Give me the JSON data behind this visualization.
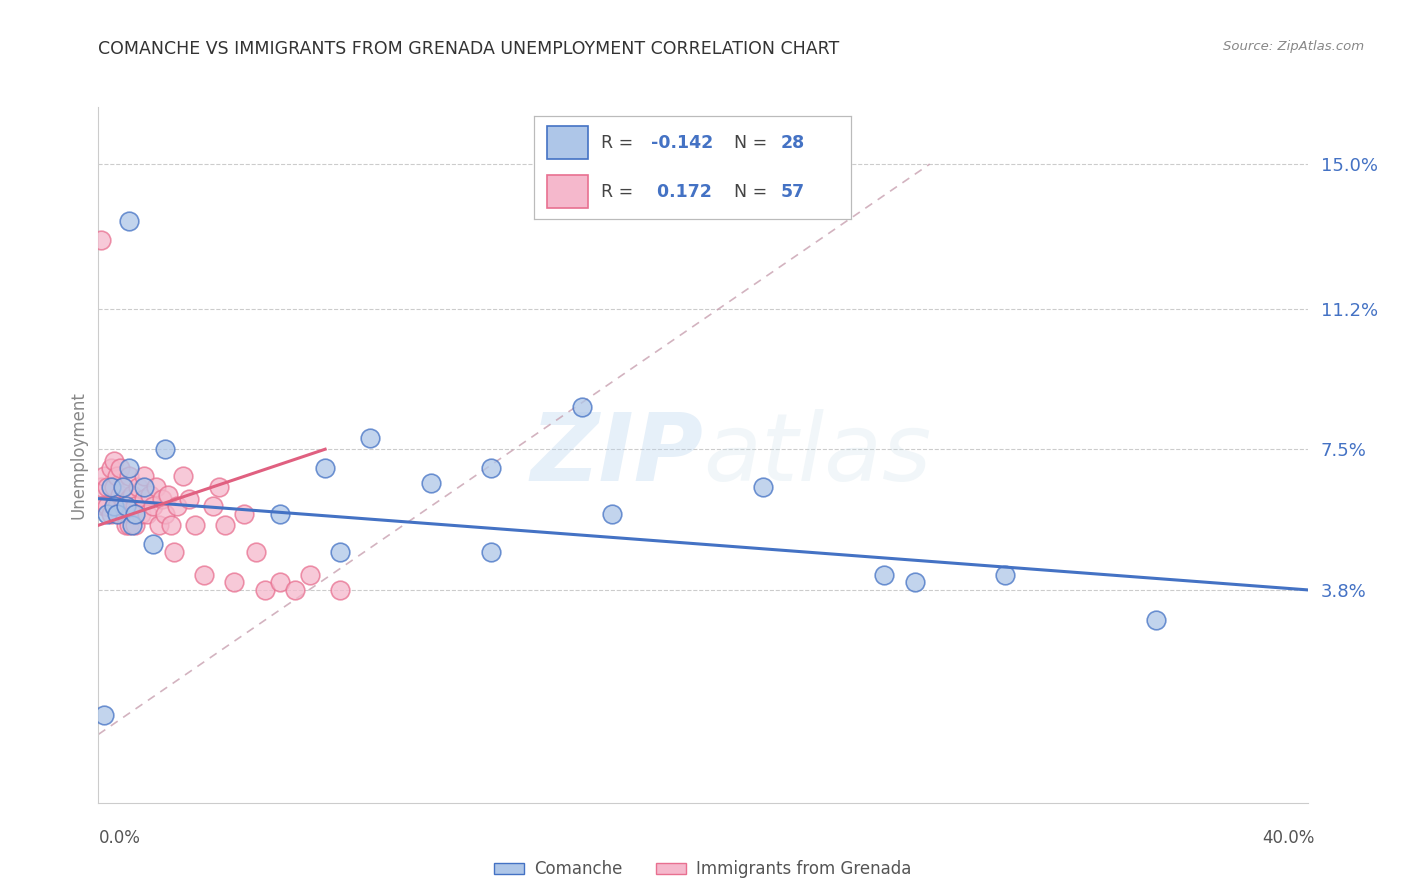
{
  "title": "COMANCHE VS IMMIGRANTS FROM GRENADA UNEMPLOYMENT CORRELATION CHART",
  "source": "Source: ZipAtlas.com",
  "ylabel": "Unemployment",
  "ytick_vals": [
    0.038,
    0.075,
    0.112,
    0.15
  ],
  "ytick_labels": [
    "3.8%",
    "7.5%",
    "11.2%",
    "15.0%"
  ],
  "xmin": 0.0,
  "xmax": 0.4,
  "ymin": -0.018,
  "ymax": 0.165,
  "comanche_color": "#aec6e8",
  "grenada_color": "#f5b8cc",
  "comanche_edge_color": "#4472c4",
  "grenada_edge_color": "#e87090",
  "blue_line_color": "#4472c4",
  "pink_line_color": "#e06080",
  "diag_line_color": "#c8a0b0",
  "watermark_color": "#c8dff0",
  "comanche_x": [
    0.002,
    0.003,
    0.004,
    0.005,
    0.006,
    0.008,
    0.009,
    0.01,
    0.011,
    0.012,
    0.015,
    0.06,
    0.075,
    0.09,
    0.11,
    0.13,
    0.16,
    0.17,
    0.22,
    0.26,
    0.27,
    0.3,
    0.35,
    0.01,
    0.018,
    0.022,
    0.08,
    0.13
  ],
  "comanche_y": [
    0.005,
    0.058,
    0.065,
    0.06,
    0.058,
    0.065,
    0.06,
    0.07,
    0.055,
    0.058,
    0.065,
    0.058,
    0.07,
    0.078,
    0.066,
    0.048,
    0.086,
    0.058,
    0.065,
    0.042,
    0.04,
    0.042,
    0.03,
    0.135,
    0.05,
    0.075,
    0.048,
    0.07
  ],
  "grenada_x": [
    0.001,
    0.001,
    0.002,
    0.002,
    0.003,
    0.003,
    0.004,
    0.004,
    0.005,
    0.005,
    0.005,
    0.006,
    0.006,
    0.007,
    0.007,
    0.007,
    0.008,
    0.008,
    0.009,
    0.009,
    0.01,
    0.01,
    0.01,
    0.011,
    0.011,
    0.012,
    0.012,
    0.013,
    0.014,
    0.015,
    0.015,
    0.016,
    0.017,
    0.018,
    0.019,
    0.02,
    0.021,
    0.022,
    0.023,
    0.024,
    0.025,
    0.026,
    0.028,
    0.03,
    0.032,
    0.035,
    0.038,
    0.04,
    0.042,
    0.045,
    0.048,
    0.052,
    0.055,
    0.06,
    0.065,
    0.07,
    0.08
  ],
  "grenada_y": [
    0.065,
    0.13,
    0.06,
    0.068,
    0.06,
    0.065,
    0.058,
    0.07,
    0.06,
    0.065,
    0.072,
    0.06,
    0.068,
    0.058,
    0.063,
    0.07,
    0.06,
    0.065,
    0.055,
    0.06,
    0.055,
    0.062,
    0.068,
    0.058,
    0.063,
    0.055,
    0.06,
    0.065,
    0.058,
    0.062,
    0.068,
    0.058,
    0.063,
    0.06,
    0.065,
    0.055,
    0.062,
    0.058,
    0.063,
    0.055,
    0.048,
    0.06,
    0.068,
    0.062,
    0.055,
    0.042,
    0.06,
    0.065,
    0.055,
    0.04,
    0.058,
    0.048,
    0.038,
    0.04,
    0.038,
    0.042,
    0.038
  ],
  "blue_line_x": [
    0.0,
    0.4
  ],
  "blue_line_y": [
    0.062,
    0.038
  ],
  "pink_line_x": [
    0.0,
    0.075
  ],
  "pink_line_y": [
    0.055,
    0.075
  ],
  "diag_line_x": [
    0.0,
    0.275
  ],
  "diag_line_y": [
    0.0,
    0.15
  ]
}
